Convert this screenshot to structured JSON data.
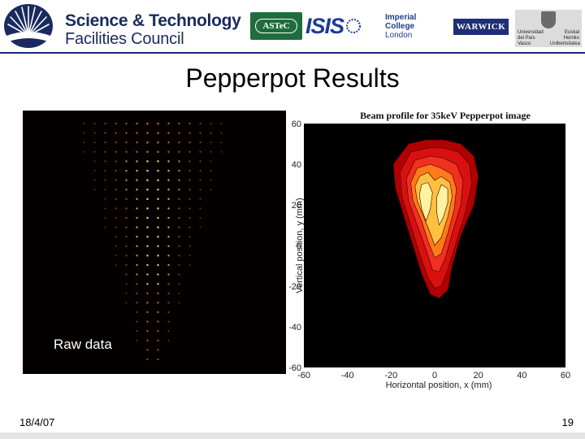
{
  "header": {
    "org_line1": "Science & Technology",
    "org_line2": "Facilities Council",
    "partners": {
      "astec": "ASTeC",
      "isis": "ISIS",
      "imperial_line1": "Imperial College",
      "imperial_line2": "London",
      "warwick": "WARWICK",
      "upv_left": "Universidad del País Vasco",
      "upv_right": "Euskal Herriko Unibertsitatea"
    },
    "rule_color": "#1a2a6c"
  },
  "slide": {
    "title": "Pepperpot Results",
    "raw_label": "Raw data"
  },
  "chart_data": {
    "type": "heatmap",
    "title": "Beam profile for 35keV Pepperpot image",
    "xlabel": "Horizontal position, x (mm)",
    "ylabel": "Vertical position, y (mm)",
    "xlim": [
      -60,
      60
    ],
    "ylim": [
      -60,
      60
    ],
    "xticks": [
      -60,
      -40,
      -20,
      0,
      20,
      40,
      60
    ],
    "yticks": [
      -60,
      -40,
      -20,
      0,
      20,
      40,
      60
    ],
    "background": "#000000",
    "colormap": [
      "#b00000",
      "#d81010",
      "#f03020",
      "#ff7a1a",
      "#ffc040",
      "#fff2a0"
    ],
    "contours": [
      {
        "level": 1,
        "points": [
          [
            -12,
            50
          ],
          [
            -4,
            52
          ],
          [
            4,
            52
          ],
          [
            12,
            50
          ],
          [
            18,
            44
          ],
          [
            20,
            34
          ],
          [
            18,
            20
          ],
          [
            12,
            5
          ],
          [
            8,
            -10
          ],
          [
            6,
            -22
          ],
          [
            2,
            -26
          ],
          [
            -2,
            -24
          ],
          [
            -6,
            -14
          ],
          [
            -10,
            0
          ],
          [
            -14,
            14
          ],
          [
            -18,
            28
          ],
          [
            -19,
            40
          ]
        ]
      },
      {
        "level": 2,
        "points": [
          [
            -11,
            46
          ],
          [
            -3,
            48
          ],
          [
            4,
            48
          ],
          [
            11,
            46
          ],
          [
            16,
            40
          ],
          [
            17,
            30
          ],
          [
            14,
            16
          ],
          [
            10,
            2
          ],
          [
            6,
            -12
          ],
          [
            3,
            -20
          ],
          [
            0,
            -21
          ],
          [
            -3,
            -16
          ],
          [
            -7,
            -4
          ],
          [
            -11,
            10
          ],
          [
            -15,
            24
          ],
          [
            -16,
            36
          ]
        ]
      },
      {
        "level": 3,
        "points": [
          [
            -9,
            42
          ],
          [
            -2,
            44
          ],
          [
            4,
            43
          ],
          [
            10,
            40
          ],
          [
            13,
            32
          ],
          [
            12,
            20
          ],
          [
            8,
            6
          ],
          [
            5,
            -6
          ],
          [
            2,
            -13
          ],
          [
            -1,
            -12
          ],
          [
            -4,
            -2
          ],
          [
            -8,
            10
          ],
          [
            -12,
            22
          ],
          [
            -13,
            33
          ]
        ]
      },
      {
        "level": 4,
        "points": [
          [
            -8,
            38
          ],
          [
            -2,
            40
          ],
          [
            3,
            38
          ],
          [
            8,
            35
          ],
          [
            10,
            28
          ],
          [
            9,
            18
          ],
          [
            6,
            6
          ],
          [
            3,
            -4
          ],
          [
            0,
            -6
          ],
          [
            -3,
            2
          ],
          [
            -6,
            12
          ],
          [
            -10,
            22
          ],
          [
            -11,
            31
          ]
        ]
      },
      {
        "level": 5,
        "points": [
          [
            -7,
            34
          ],
          [
            -3,
            36
          ],
          [
            0,
            32
          ],
          [
            3,
            34
          ],
          [
            7,
            31
          ],
          [
            8,
            24
          ],
          [
            6,
            14
          ],
          [
            3,
            4
          ],
          [
            0,
            0
          ],
          [
            -2,
            6
          ],
          [
            -5,
            14
          ],
          [
            -8,
            22
          ],
          [
            -9,
            29
          ]
        ]
      },
      {
        "level": 6,
        "points": [
          [
            -6,
            30
          ],
          [
            -3,
            31
          ],
          [
            -1,
            26
          ],
          [
            -2,
            18
          ],
          [
            -4,
            12
          ],
          [
            -6,
            18
          ],
          [
            -7,
            25
          ]
        ]
      },
      {
        "level": 6,
        "points": [
          [
            3,
            30
          ],
          [
            6,
            28
          ],
          [
            6,
            21
          ],
          [
            4,
            14
          ],
          [
            2,
            10
          ],
          [
            1,
            16
          ],
          [
            1,
            24
          ]
        ]
      }
    ]
  },
  "footer": {
    "date": "18/4/07",
    "page": "19"
  }
}
